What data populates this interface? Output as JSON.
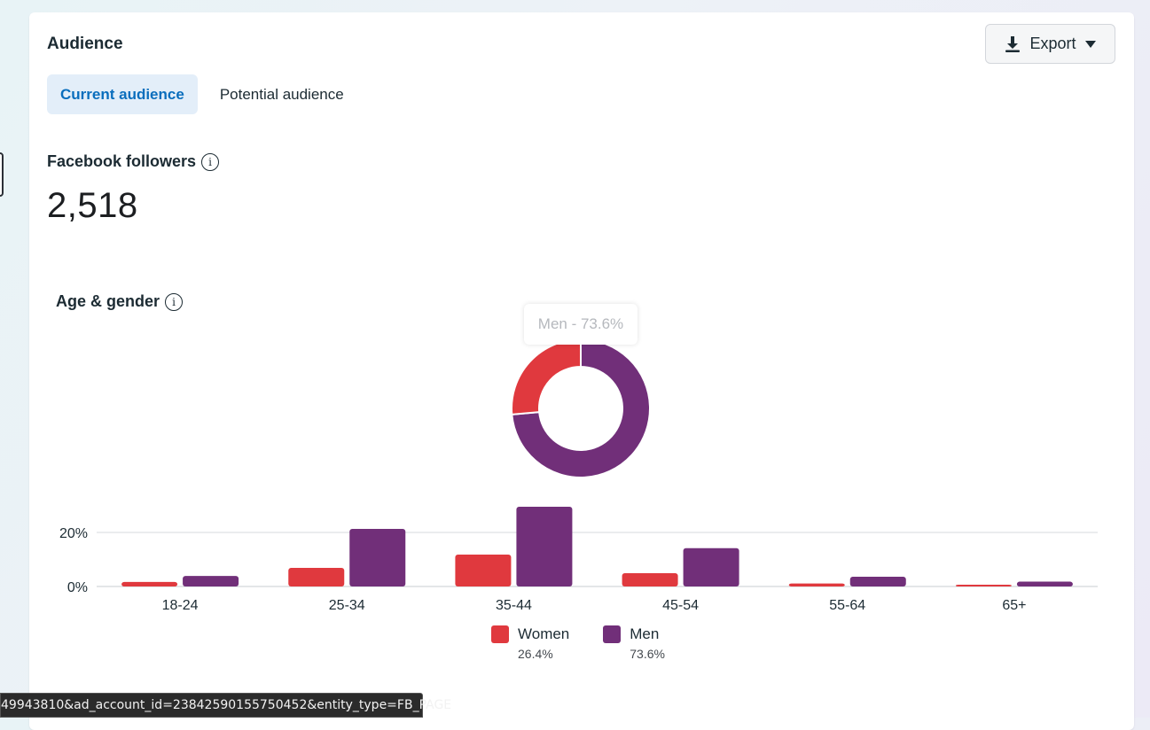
{
  "card": {
    "title": "Audience",
    "export_label": "Export",
    "tabs": [
      {
        "label": "Current audience",
        "active": true
      },
      {
        "label": "Potential audience",
        "active": false
      }
    ]
  },
  "followers": {
    "label": "Facebook followers",
    "count": "2,518"
  },
  "age_gender": {
    "label": "Age & gender",
    "tooltip": "Men - 73.6%"
  },
  "chart_data": [
    {
      "type": "pie",
      "variant": "donut",
      "title": "Age & gender",
      "slices": [
        {
          "name": "Women",
          "value": 26.4,
          "color": "#e0393e"
        },
        {
          "name": "Men",
          "value": 73.6,
          "color": "#712f79"
        }
      ]
    },
    {
      "type": "bar",
      "categories": [
        "18-24",
        "25-34",
        "35-44",
        "45-54",
        "55-64",
        "65+"
      ],
      "series": [
        {
          "name": "Women",
          "color": "#e0393e",
          "values": [
            1.7,
            6.9,
            11.8,
            4.9,
            1.1,
            0.6
          ]
        },
        {
          "name": "Men",
          "color": "#712f79",
          "values": [
            3.9,
            21.3,
            29.5,
            14.2,
            3.6,
            1.8
          ]
        }
      ],
      "yticks": [
        "20%",
        "0%"
      ],
      "ylim": [
        0,
        30
      ]
    }
  ],
  "legend": [
    {
      "label": "Women",
      "pct": "26.4%",
      "color": "#e0393e"
    },
    {
      "label": "Men",
      "pct": "73.6%",
      "color": "#712f79"
    }
  ],
  "status_bar": {
    "url_text": "49943810&ad_account_id=23842590155750452&entity_type=FB_PAGE"
  }
}
